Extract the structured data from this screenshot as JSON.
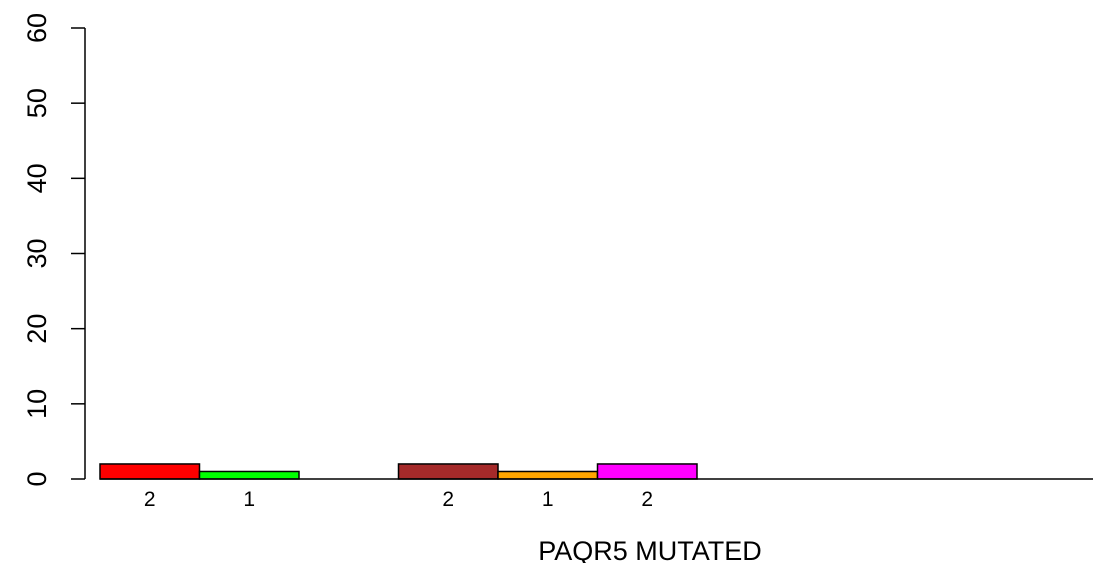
{
  "chart_data": {
    "type": "bar",
    "xlabel": "PAQR5 MUTATED",
    "ylabel": "",
    "ylim": [
      0,
      60
    ],
    "yticks": [
      0,
      10,
      20,
      30,
      40,
      50,
      60
    ],
    "bars": [
      {
        "value": 2,
        "label": "2",
        "color": "#ff0000"
      },
      {
        "value": 1,
        "label": "1",
        "color": "#00ff00"
      },
      {
        "value": 0,
        "label": "",
        "color": "#0000ff"
      },
      {
        "value": 2,
        "label": "2",
        "color": "#a52a2a"
      },
      {
        "value": 1,
        "label": "1",
        "color": "#ffa500"
      },
      {
        "value": 2,
        "label": "2",
        "color": "#ff00ff"
      },
      {
        "value": 0,
        "label": "",
        "color": "#00ffff"
      },
      {
        "value": 0,
        "label": "",
        "color": "#ffff00"
      },
      {
        "value": 0,
        "label": "",
        "color": "#808080"
      }
    ]
  }
}
